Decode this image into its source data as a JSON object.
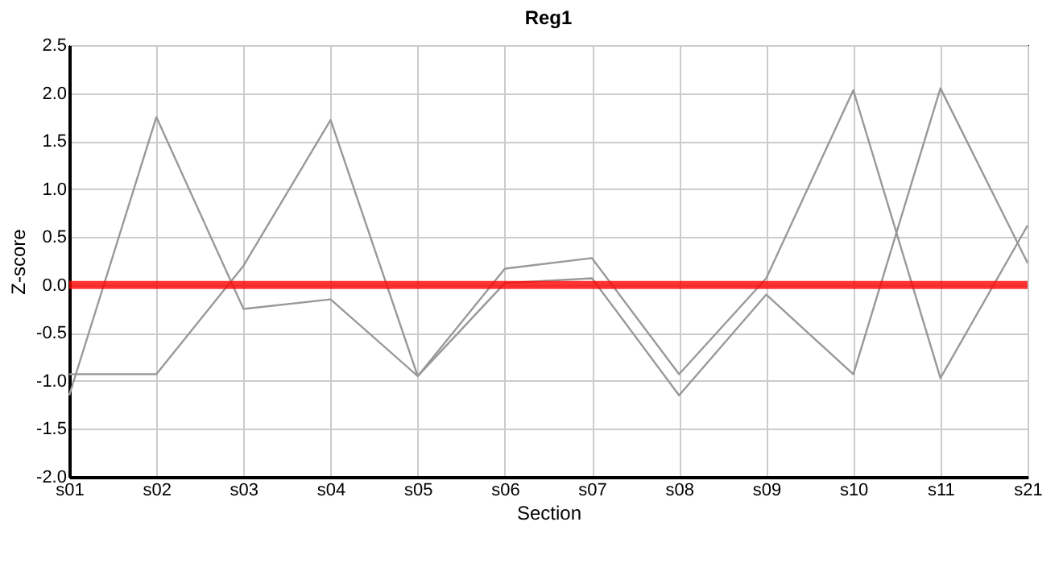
{
  "chart_data": {
    "type": "line",
    "title": "Reg1",
    "xlabel": "Section",
    "ylabel": "Z-score",
    "categories": [
      "s01",
      "s02",
      "s03",
      "s04",
      "s05",
      "s06",
      "s07",
      "s08",
      "s09",
      "s10",
      "s11",
      "s21"
    ],
    "series": [
      {
        "color": "#999999",
        "values": [
          -1.15,
          1.75,
          -0.25,
          -0.15,
          -0.95,
          0.17,
          0.28,
          -0.93,
          0.07,
          2.03,
          -0.97,
          0.62
        ]
      },
      {
        "color": "#999999",
        "values": [
          -0.93,
          -0.93,
          0.2,
          1.72,
          -0.95,
          0.02,
          0.07,
          -1.15,
          -0.1,
          -0.93,
          2.05,
          0.23
        ]
      }
    ],
    "ylim": [
      -2.0,
      2.5
    ],
    "yticks": [
      {
        "value": -2,
        "label": "-2.0"
      },
      {
        "value": -1.5,
        "label": "-1.5"
      },
      {
        "value": -1,
        "label": "-1.0"
      },
      {
        "value": -0.5,
        "label": "-0.5"
      },
      {
        "value": 0,
        "label": "0.0"
      },
      {
        "value": 0.5,
        "label": "0.5"
      },
      {
        "value": 1,
        "label": "1.0"
      },
      {
        "value": 1.5,
        "label": "1.5"
      },
      {
        "value": 2,
        "label": "2.0"
      },
      {
        "value": 2.5,
        "label": "2.5"
      }
    ],
    "ref_lines": [
      {
        "axis": "y",
        "value": 0,
        "color": "#ff0000"
      }
    ],
    "grid": true,
    "legend": false,
    "marker": "none",
    "line_style": "solid"
  }
}
